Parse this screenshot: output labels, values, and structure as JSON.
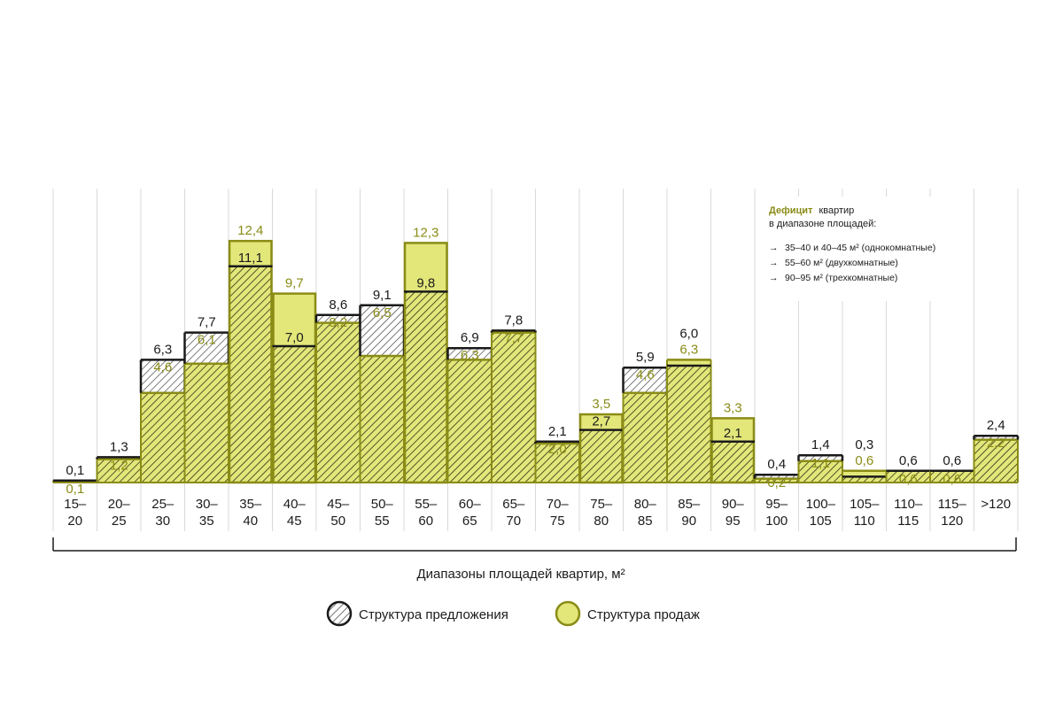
{
  "chart_data": {
    "type": "bar",
    "categories": [
      "15–20",
      "20–25",
      "25–30",
      "30–35",
      "35–40",
      "40–45",
      "45–50",
      "50–55",
      "55–60",
      "60–65",
      "65–70",
      "70–75",
      "75–80",
      "80–85",
      "85–90",
      "90–95",
      "95–100",
      "100–105",
      "105–110",
      "110–115",
      "115–120",
      ">120"
    ],
    "series": [
      {
        "name": "Структура предложения",
        "values": [
          0.1,
          1.3,
          6.3,
          7.7,
          11.1,
          7.0,
          8.6,
          9.1,
          9.8,
          6.9,
          7.8,
          2.1,
          2.7,
          5.9,
          6.0,
          2.1,
          0.4,
          1.4,
          0.3,
          0.6,
          0.6,
          2.4
        ],
        "labels": [
          "0,1",
          "1,3",
          "6,3",
          "7,7",
          "11,1",
          "7,0",
          "8,6",
          "9,1",
          "9,8",
          "6,9",
          "7,8",
          "2,1",
          "2,7",
          "5,9",
          "6,0",
          "2,1",
          "0,4",
          "1,4",
          "0,3",
          "0,6",
          "0,6",
          "2,4"
        ]
      },
      {
        "name": "Структура продаж",
        "values": [
          0.1,
          1.2,
          4.6,
          6.1,
          12.4,
          9.7,
          8.2,
          6.5,
          12.3,
          6.3,
          7.7,
          2.0,
          3.5,
          4.6,
          6.3,
          3.3,
          0.2,
          1.1,
          0.6,
          0.6,
          0.6,
          2.2
        ],
        "labels": [
          "0,1",
          "1,2",
          "4,6",
          "6,1",
          "12,4",
          "9,7",
          "8,2",
          "6,5",
          "12,3",
          "6,3",
          "7,7",
          "2,0",
          "3,5",
          "4,6",
          "6,3",
          "3,3",
          "0,2",
          "1,1",
          "0,6",
          "0,6",
          "0,6",
          "2,2"
        ]
      }
    ],
    "deficit_categories": [
      "35–40",
      "40–45",
      "55–60",
      "75–80",
      "90–95"
    ],
    "xlabel": "Диапазоны площадей квартир, м²",
    "ylim": [
      0,
      15
    ],
    "grid": "vertical"
  },
  "note": {
    "title_highlight": "Дефицит",
    "title_rest": "квартир",
    "title_line2": "в диапазоне площадей:",
    "arrow": "→",
    "items": [
      "35–40 и 40–45 м² (однокомнатные)",
      "55–60 м² (двухкомнатные)",
      "90–95 м² (трехкомнатные)"
    ]
  },
  "legend": [
    {
      "label": "Структура предложения"
    },
    {
      "label": "Структура продаж"
    }
  ],
  "colors": {
    "offer": "#1a1a1a",
    "sales_fill": "#e3e77a",
    "sales_line": "#8a8c16",
    "olive_text": "#8a8c16",
    "hatch": "#3a3a1e",
    "grid": "#d9d9d9"
  }
}
